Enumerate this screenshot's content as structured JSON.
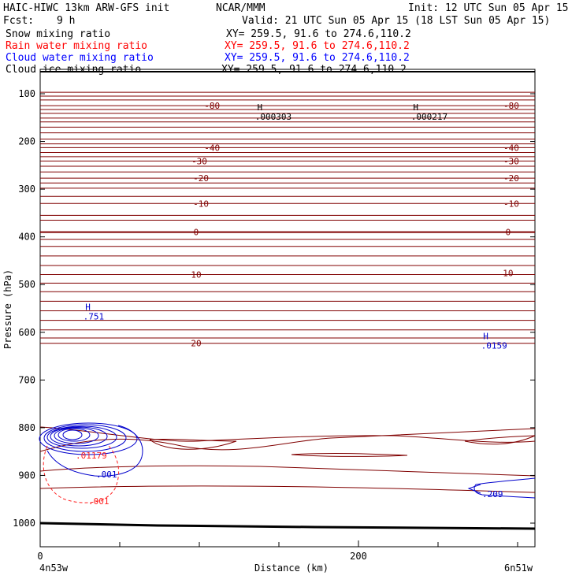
{
  "header": {
    "model": "HAIC-HIWC 13km ARW-GFS init",
    "org": "NCAR/MMM",
    "init": "Init: 12 UTC Sun 05 Apr 15",
    "fcst_label": "Fcst:",
    "fcst_value": "9 h",
    "valid": "Valid: 21 UTC Sun 05 Apr 15 (18 LST Sun 05 Apr 15)"
  },
  "legend": [
    {
      "name": "Snow mixing ratio",
      "xy": "XY= 259.5, 91.6 to 274.6,110.2",
      "color": "#000000"
    },
    {
      "name": "Rain water mixing ratio",
      "xy": "XY= 259.5, 91.6 to 274.6,110.2",
      "color": "#ff0000"
    },
    {
      "name": "Cloud water mixing ratio",
      "xy": "XY= 259.5, 91.6 to 274.6,110.2",
      "color": "#0000ff"
    },
    {
      "name": "Cloud ice mixing ratio",
      "xy": "XY= 259.5, 91.6 to 274.6,110.2",
      "color": "#000000"
    }
  ],
  "colors": {
    "temperature": "#800000",
    "rain": "#ff2020",
    "cloud_water": "#0000cc",
    "terrain": "#000000"
  },
  "chart_data": {
    "type": "contour cross-section",
    "xlabel": "Distance (km)",
    "ylabel": "Pressure (hPa)",
    "xlim": [
      0,
      310
    ],
    "ylim": [
      1045,
      65
    ],
    "x_ticks": [
      0,
      200
    ],
    "x_minor_ticks": [
      50,
      100,
      150,
      250,
      300
    ],
    "y_ticks": [
      100,
      200,
      300,
      400,
      500,
      600,
      700,
      800,
      900,
      1000
    ],
    "endpoint_left": "4n53w",
    "endpoint_right": "6n51w",
    "temperature_contours": {
      "interval": 5,
      "labels": [
        {
          "text": "-80",
          "x": 108,
          "p": 125
        },
        {
          "text": "-80",
          "x": 296,
          "p": 125
        },
        {
          "text": "-40",
          "x": 108,
          "p": 213
        },
        {
          "text": "-40",
          "x": 296,
          "p": 213
        },
        {
          "text": "-30",
          "x": 100,
          "p": 241
        },
        {
          "text": "-30",
          "x": 296,
          "p": 241
        },
        {
          "text": "-20",
          "x": 101,
          "p": 277
        },
        {
          "text": "-20",
          "x": 296,
          "p": 277
        },
        {
          "text": "-10",
          "x": 101,
          "p": 330
        },
        {
          "text": "-10",
          "x": 296,
          "p": 330
        },
        {
          "text": "0",
          "x": 98,
          "p": 390
        },
        {
          "text": "0",
          "x": 294,
          "p": 390
        },
        {
          "text": "10",
          "x": 98,
          "p": 479
        },
        {
          "text": "10",
          "x": 294,
          "p": 476
        },
        {
          "text": "20",
          "x": 98,
          "p": 623
        }
      ]
    },
    "annotations": [
      {
        "text": "H",
        "x": 138,
        "p": 135,
        "value": ".000303"
      },
      {
        "text": "H",
        "x": 236,
        "p": 135,
        "value": ".000217"
      },
      {
        "text": "H",
        "x": 30,
        "p": 553,
        "value": ".751"
      },
      {
        "text": "H",
        "x": 280,
        "p": 614,
        "value": ".0159"
      }
    ],
    "cloud_water_labels": [
      ".01179",
      ".001",
      ".209"
    ],
    "rain_labels": [
      ".001"
    ]
  }
}
